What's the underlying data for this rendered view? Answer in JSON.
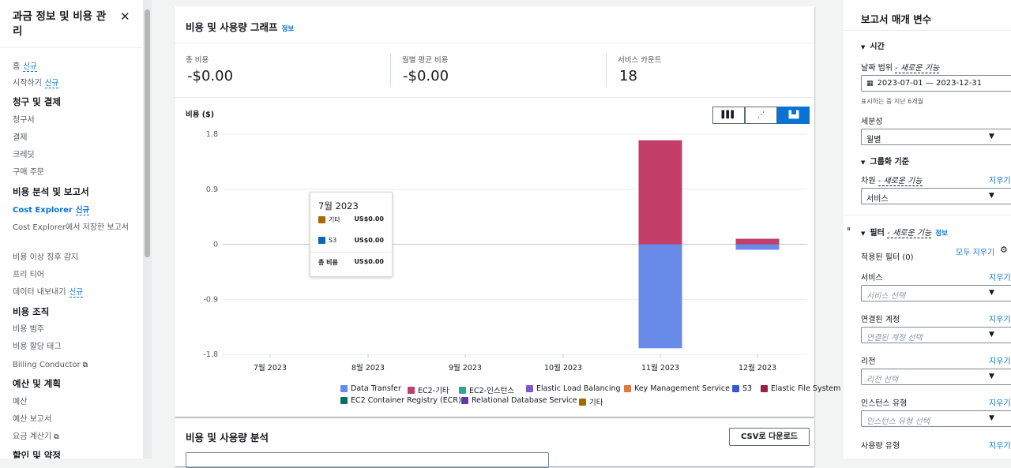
{
  "nav": {
    "title": "과금 정보 및 비용 관리",
    "items": [
      {
        "label": "홈",
        "badge": "신규"
      },
      {
        "label": "시작하기",
        "badge": "신규"
      }
    ],
    "sections": [
      {
        "heading": "청구 및 결제",
        "items": [
          "청구서",
          "결제",
          "크레딧",
          "구매 주문"
        ]
      },
      {
        "heading": "비용 분석 및 보고서",
        "items": [
          "Cost Explorer",
          "Cost Explorer에서 저장한 보고서",
          "비용 이상 징후 감지",
          "프리 티어",
          "데이터 내보내기"
        ]
      },
      {
        "heading": "비용 조직",
        "items": [
          "비용 범주",
          "비용 할당 태그",
          "Billing Conductor"
        ]
      },
      {
        "heading": "예산 및 계획",
        "items": [
          "예산",
          "예산 보고서",
          "요금 계산기"
        ]
      },
      {
        "heading": "할인 및 약정"
      }
    ],
    "badge_new": "신규"
  },
  "graph": {
    "title": "비용 및 사용량 그래프",
    "info": "정보",
    "kpis": [
      {
        "label": "총 비용",
        "value": "-$0.00"
      },
      {
        "label": "월별 평균 비용",
        "value": "-$0.00"
      },
      {
        "label": "서비스 카운트",
        "value": "18"
      }
    ],
    "ylabel": "비용 ($)"
  },
  "chart_data": {
    "type": "bar",
    "stacked": true,
    "ylabel": "비용 ($)",
    "ylim": [
      -1.8,
      1.8
    ],
    "yticks": [
      "1.8",
      "0.9",
      "0",
      "-0.9",
      "-1.8"
    ],
    "categories": [
      "7월 2023",
      "8월 2023",
      "9월 2023",
      "10월 2023",
      "11월 2023",
      "12월 2023"
    ],
    "series": [
      {
        "name": "Data Transfer",
        "color": "#688ae8",
        "values": [
          0,
          0,
          0,
          0,
          -1.7,
          -0.09
        ]
      },
      {
        "name": "EC2-기타",
        "color": "#c33d69",
        "values": [
          0,
          0,
          0,
          0,
          1.7,
          0.09
        ]
      }
    ],
    "legend": [
      {
        "name": "Data Transfer",
        "color": "#688ae8"
      },
      {
        "name": "EC2-기타",
        "color": "#c33d69"
      },
      {
        "name": "EC2-인스턴스",
        "color": "#2ea597"
      },
      {
        "name": "Elastic Load Balancing",
        "color": "#8456ce"
      },
      {
        "name": "Key Management Service",
        "color": "#e07941"
      },
      {
        "name": "S3",
        "color": "#3759ce"
      },
      {
        "name": "Elastic File System",
        "color": "#962249"
      },
      {
        "name": "EC2 Container Registry (ECR)",
        "color": "#096f64"
      },
      {
        "name": "Relational Database Service",
        "color": "#6237a7"
      },
      {
        "name": "기타",
        "color": "#a26a00"
      }
    ],
    "legend_position": "bottom"
  },
  "tooltip": {
    "title": "7월 2023",
    "rows": [
      {
        "name": "기타",
        "value": "US$0.00",
        "color": "#a26a00"
      },
      {
        "name": "S3",
        "value": "US$0.00",
        "color": "#0f64b4"
      }
    ],
    "total_label": "총 비용",
    "total_value": "US$0.00"
  },
  "analysis": {
    "title": "비용 및 사용량 분석",
    "download": "CSV로 다운로드"
  },
  "side": {
    "title": "보고서 매개 변수",
    "time_section": "시간",
    "date_range_label": "날짜 범위",
    "new_feature": "- 새로운 기능",
    "date_range": "2023-07-01 — 2023-12-31",
    "date_hint": "표시하는 중 지난 6개월",
    "granularity_label": "세분성",
    "granularity": "월별",
    "grouping_section": "그룹화 기준",
    "dimension_label": "차원",
    "clear": "지우기",
    "dimension": "서비스",
    "filter_section": "필터",
    "filter_info": "정보",
    "applied_filters": "적용된 필터 (0)",
    "clear_all": "모두 지우기",
    "filters": [
      {
        "label": "서비스",
        "placeholder": "서비스 선택"
      },
      {
        "label": "연결된 계정",
        "placeholder": "연결된 계정 선택"
      },
      {
        "label": "리전",
        "placeholder": "리전 선택"
      },
      {
        "label": "인스턴스 유형",
        "placeholder": "인스턴스 유형 선택"
      },
      {
        "label": "사용량 유형"
      }
    ]
  }
}
